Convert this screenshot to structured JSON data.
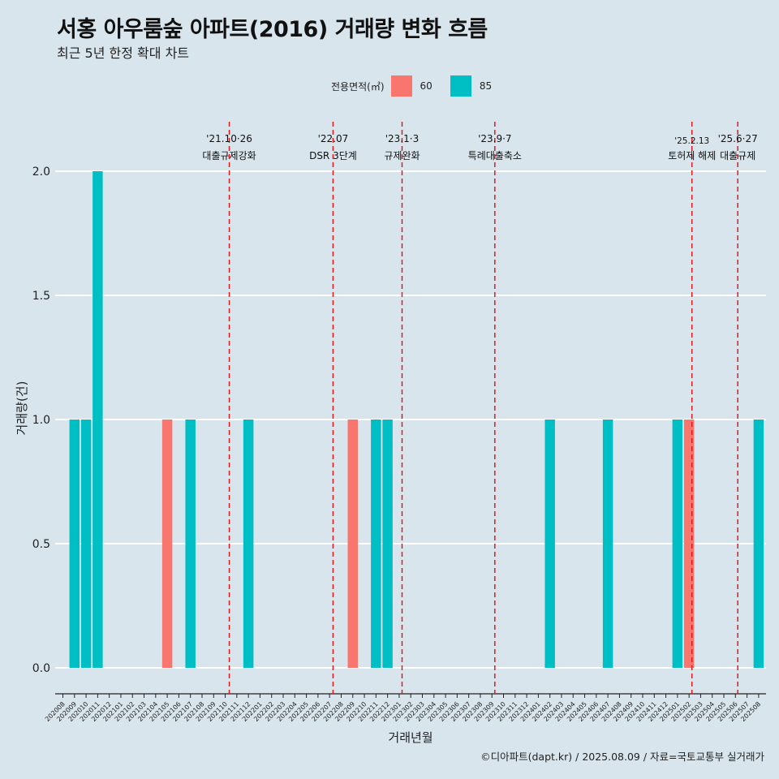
{
  "header": {
    "title": "서홍 아우룸숲 아파트(2016) 거래량 변화 흐름",
    "subtitle": "최근 5년 한정 확대 차트"
  },
  "legend": {
    "title": "전용면적(㎡)",
    "items": [
      {
        "label": "60",
        "color": "#f8766d"
      },
      {
        "label": "85",
        "color": "#00bfc4"
      }
    ]
  },
  "caption": "©디아파트(dapt.kr) / 2025.08.09 / 자료=국토교통부 실거래가",
  "chart_data": {
    "type": "bar",
    "xlabel": "거래년월",
    "ylabel": "거래량(건)",
    "ylim": [
      0,
      2.0
    ],
    "yticks": [
      "0.0",
      "0.5",
      "1.0",
      "1.5",
      "2.0"
    ],
    "categories": [
      "202008",
      "202009",
      "202010",
      "202011",
      "202012",
      "202101",
      "202102",
      "202103",
      "202104",
      "202105",
      "202106",
      "202107",
      "202108",
      "202109",
      "202110",
      "202111",
      "202112",
      "202201",
      "202202",
      "202203",
      "202204",
      "202205",
      "202206",
      "202207",
      "202208",
      "202209",
      "202210",
      "202211",
      "202212",
      "202301",
      "202302",
      "202303",
      "202304",
      "202305",
      "202306",
      "202307",
      "202308",
      "202309",
      "202310",
      "202311",
      "202312",
      "202401",
      "202402",
      "202403",
      "202404",
      "202405",
      "202406",
      "202407",
      "202408",
      "202409",
      "202410",
      "202411",
      "202412",
      "202501",
      "202502",
      "202503",
      "202504",
      "202505",
      "202506",
      "202507",
      "202508"
    ],
    "bars": [
      {
        "x": "202009",
        "series": "85",
        "value": 1
      },
      {
        "x": "202010",
        "series": "85",
        "value": 1
      },
      {
        "x": "202011",
        "series": "85",
        "value": 2
      },
      {
        "x": "202105",
        "series": "60",
        "value": 1
      },
      {
        "x": "202107",
        "series": "85",
        "value": 1
      },
      {
        "x": "202112",
        "series": "85",
        "value": 1
      },
      {
        "x": "202209",
        "series": "60",
        "value": 1
      },
      {
        "x": "202211",
        "series": "85",
        "value": 1
      },
      {
        "x": "202212",
        "series": "85",
        "value": 1
      },
      {
        "x": "202402",
        "series": "85",
        "value": 1
      },
      {
        "x": "202407",
        "series": "85",
        "value": 1
      },
      {
        "x": "202501",
        "series": "85",
        "value": 1
      },
      {
        "x": "202502",
        "series": "60",
        "value": 1
      },
      {
        "x": "202508",
        "series": "85",
        "value": 1
      }
    ],
    "events": [
      {
        "date": "'21.10·26",
        "label": "대출규제강화",
        "x": 14.35
      },
      {
        "date": "'22.07",
        "label": "DSR 3단계",
        "x": 23.3
      },
      {
        "date": "'23.1·3",
        "label": "규제완화",
        "x": 29.25
      },
      {
        "date": "'23.9·7",
        "label": "특례대출축소",
        "x": 37.25
      },
      {
        "date": "'25.2.13",
        "label": "토허제 해제",
        "x": 54.25
      },
      {
        "date": "'25.6·27",
        "label": "대출규제",
        "x": 58.2
      }
    ]
  }
}
